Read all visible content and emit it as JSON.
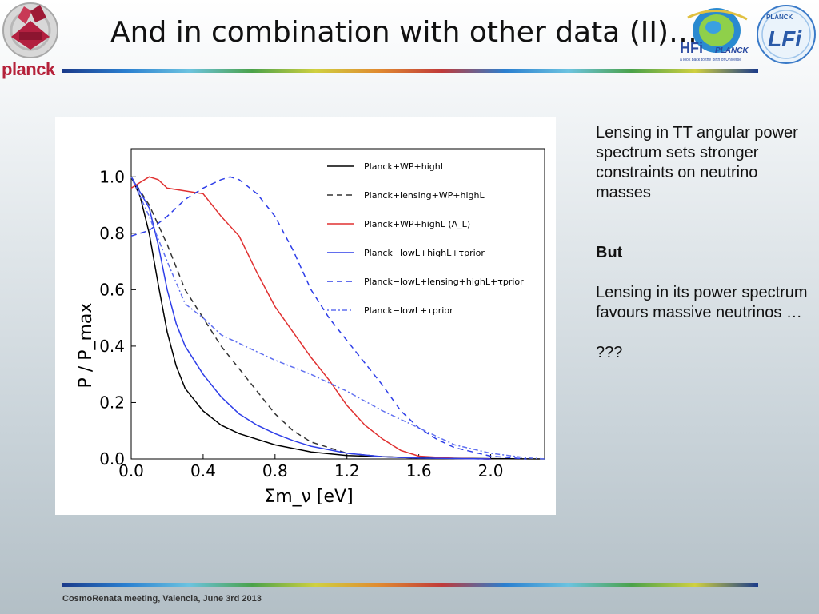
{
  "slide": {
    "title": "And in combination with other data (II)…",
    "logo_left_text": "planck",
    "logo_hfi_text": "HFi",
    "logo_hfi_sub": "PLANCK",
    "logo_hfi_tagline": "a look back to the birth of Universe",
    "logo_lfi_text": "LFi",
    "logo_lfi_sub": "PLANCK",
    "footer": "CosmoRenata meeting, Valencia, June 3rd 2013"
  },
  "side_text": {
    "para1": "Lensing in TT angular power spectrum sets stronger constraints on neutrino masses",
    "para2": "But",
    "para3": "Lensing in its power spectrum favours massive neutrinos …",
    "para4": "???"
  },
  "chart_data": {
    "type": "line",
    "xlabel": "Σm_ν [eV]",
    "ylabel": "P / P_max",
    "xlim": [
      0.0,
      2.3
    ],
    "ylim": [
      0.0,
      1.1
    ],
    "xticks": [
      "0.0",
      "0.4",
      "0.8",
      "1.2",
      "1.6",
      "2.0"
    ],
    "yticks": [
      "0.0",
      "0.2",
      "0.4",
      "0.6",
      "0.8",
      "1.0"
    ],
    "legend_position": "top-right",
    "series": [
      {
        "name": "Planck+WP+highL",
        "color": "#000000",
        "style": "solid",
        "points": [
          [
            0,
            1.0
          ],
          [
            0.05,
            0.93
          ],
          [
            0.1,
            0.8
          ],
          [
            0.15,
            0.62
          ],
          [
            0.2,
            0.45
          ],
          [
            0.25,
            0.33
          ],
          [
            0.3,
            0.25
          ],
          [
            0.4,
            0.17
          ],
          [
            0.5,
            0.12
          ],
          [
            0.6,
            0.09
          ],
          [
            0.8,
            0.05
          ],
          [
            1.0,
            0.025
          ],
          [
            1.2,
            0.012
          ],
          [
            1.6,
            0.004
          ],
          [
            2.0,
            0.001
          ],
          [
            2.3,
            0.0
          ]
        ]
      },
      {
        "name": "Planck+lensing+WP+highL",
        "color": "#333333",
        "style": "dashed",
        "points": [
          [
            0,
            1.0
          ],
          [
            0.1,
            0.9
          ],
          [
            0.2,
            0.76
          ],
          [
            0.3,
            0.6
          ],
          [
            0.4,
            0.5
          ],
          [
            0.5,
            0.4
          ],
          [
            0.6,
            0.32
          ],
          [
            0.7,
            0.24
          ],
          [
            0.8,
            0.16
          ],
          [
            0.9,
            0.1
          ],
          [
            1.0,
            0.06
          ],
          [
            1.2,
            0.02
          ],
          [
            1.4,
            0.008
          ],
          [
            1.6,
            0.003
          ],
          [
            2.0,
            0.0
          ]
        ]
      },
      {
        "name": "Planck+WP+highL (A_L)",
        "color": "#e03030",
        "style": "solid",
        "points": [
          [
            0,
            0.96
          ],
          [
            0.05,
            0.98
          ],
          [
            0.1,
            1.0
          ],
          [
            0.15,
            0.99
          ],
          [
            0.2,
            0.96
          ],
          [
            0.3,
            0.95
          ],
          [
            0.4,
            0.94
          ],
          [
            0.5,
            0.86
          ],
          [
            0.6,
            0.79
          ],
          [
            0.7,
            0.66
          ],
          [
            0.8,
            0.54
          ],
          [
            0.9,
            0.45
          ],
          [
            1.0,
            0.36
          ],
          [
            1.1,
            0.28
          ],
          [
            1.2,
            0.19
          ],
          [
            1.3,
            0.12
          ],
          [
            1.4,
            0.07
          ],
          [
            1.5,
            0.03
          ],
          [
            1.6,
            0.01
          ],
          [
            1.8,
            0.002
          ],
          [
            2.0,
            0.0
          ]
        ]
      },
      {
        "name": "Planck−lowL+highL+τprior",
        "color": "#2e3ee8",
        "style": "solid",
        "points": [
          [
            0,
            1.0
          ],
          [
            0.1,
            0.89
          ],
          [
            0.15,
            0.76
          ],
          [
            0.2,
            0.6
          ],
          [
            0.25,
            0.48
          ],
          [
            0.3,
            0.4
          ],
          [
            0.4,
            0.3
          ],
          [
            0.5,
            0.22
          ],
          [
            0.6,
            0.16
          ],
          [
            0.7,
            0.12
          ],
          [
            0.8,
            0.09
          ],
          [
            0.9,
            0.065
          ],
          [
            1.0,
            0.045
          ],
          [
            1.2,
            0.02
          ],
          [
            1.4,
            0.008
          ],
          [
            1.6,
            0.003
          ],
          [
            2.0,
            0.0
          ]
        ]
      },
      {
        "name": "Planck−lowL+lensing+highL+τprior",
        "color": "#2e3ee8",
        "style": "dashed",
        "points": [
          [
            0,
            0.79
          ],
          [
            0.1,
            0.81
          ],
          [
            0.2,
            0.86
          ],
          [
            0.3,
            0.92
          ],
          [
            0.4,
            0.96
          ],
          [
            0.5,
            0.99
          ],
          [
            0.55,
            1.0
          ],
          [
            0.6,
            0.99
          ],
          [
            0.7,
            0.94
          ],
          [
            0.8,
            0.86
          ],
          [
            0.9,
            0.74
          ],
          [
            1.0,
            0.6
          ],
          [
            1.1,
            0.5
          ],
          [
            1.2,
            0.42
          ],
          [
            1.3,
            0.34
          ],
          [
            1.4,
            0.26
          ],
          [
            1.5,
            0.17
          ],
          [
            1.6,
            0.11
          ],
          [
            1.7,
            0.07
          ],
          [
            1.8,
            0.04
          ],
          [
            2.0,
            0.01
          ],
          [
            2.2,
            0.0
          ]
        ]
      },
      {
        "name": "Planck−lowL+τprior",
        "color": "#6070f0",
        "style": "dotted",
        "points": [
          [
            0,
            1.0
          ],
          [
            0.1,
            0.86
          ],
          [
            0.2,
            0.7
          ],
          [
            0.3,
            0.55
          ],
          [
            0.4,
            0.5
          ],
          [
            0.5,
            0.44
          ],
          [
            0.6,
            0.41
          ],
          [
            0.7,
            0.38
          ],
          [
            0.8,
            0.35
          ],
          [
            1.0,
            0.3
          ],
          [
            1.2,
            0.24
          ],
          [
            1.4,
            0.17
          ],
          [
            1.6,
            0.11
          ],
          [
            1.8,
            0.05
          ],
          [
            2.0,
            0.02
          ],
          [
            2.2,
            0.004
          ],
          [
            2.3,
            0.0
          ]
        ]
      }
    ]
  }
}
